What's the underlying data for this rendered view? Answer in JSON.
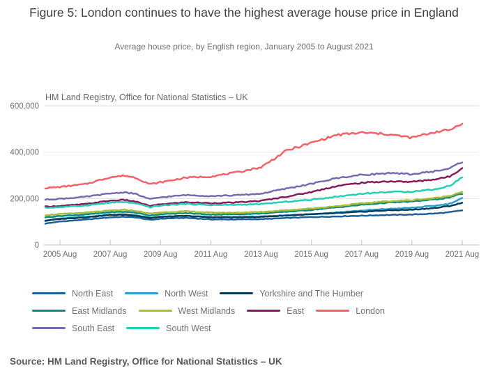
{
  "header": {
    "title": "Figure 5: London continues to have the highest average house price in England",
    "subtitle": "Average house price, by English region, January 2005 to August 2021"
  },
  "chart_note": "HM Land Registry, Office for National Statistics – UK",
  "source": "Source: HM Land Registry, Office for National Statistics – UK",
  "colors": {
    "axis_line": "#b4c3d6",
    "gridline": "#e2e2e2"
  },
  "chart_data": {
    "type": "line",
    "title": "Figure 5: London continues to have the highest average house price in England",
    "subtitle": "Average house price, by English region, January 2005 to August 2021",
    "xlabel": "",
    "ylabel": "",
    "unit": "£",
    "grid": true,
    "legend_position": "bottom",
    "x_range": [
      "2005-01",
      "2021-08"
    ],
    "ylim": [
      0,
      600000
    ],
    "y_ticks": [
      0,
      200000,
      400000,
      600000
    ],
    "y_tick_labels": [
      "0",
      "200,000",
      "400,000",
      "600,000"
    ],
    "x_tick_labels": [
      "2005 Aug",
      "2007 Aug",
      "2009 Aug",
      "2011 Aug",
      "2013 Aug",
      "2015 Aug",
      "2017 Aug",
      "2019 Aug",
      "2021 Aug"
    ],
    "anchors": [
      "2005-01",
      "2005-08",
      "2006-08",
      "2007-08",
      "2008-03",
      "2008-08",
      "2009-03",
      "2009-08",
      "2010-08",
      "2011-08",
      "2012-08",
      "2013-08",
      "2014-08",
      "2015-08",
      "2016-08",
      "2017-08",
      "2018-08",
      "2019-08",
      "2020-08",
      "2021-02",
      "2021-08"
    ],
    "series": [
      {
        "name": "North East",
        "color": "#206095",
        "values": [
          92000,
          101000,
          109000,
          119000,
          121000,
          119000,
          108000,
          113000,
          117000,
          110000,
          110000,
          111000,
          116000,
          120000,
          123000,
          126000,
          129000,
          131000,
          136000,
          141000,
          149000
        ]
      },
      {
        "name": "North West",
        "color": "#27a0cc",
        "values": [
          106000,
          114000,
          121000,
          131000,
          132000,
          128000,
          117000,
          121000,
          125000,
          120000,
          120000,
          122000,
          128000,
          133000,
          140000,
          148000,
          155000,
          160000,
          170000,
          178000,
          201000
        ]
      },
      {
        "name": "Yorkshire and The Humber",
        "color": "#003c57",
        "values": [
          104000,
          112000,
          119000,
          129000,
          130000,
          127000,
          116000,
          121000,
          125000,
          119000,
          119000,
          121000,
          127000,
          132000,
          137000,
          143000,
          149000,
          152000,
          160000,
          168000,
          181000
        ]
      },
      {
        "name": "East Midlands",
        "color": "#118c7b",
        "values": [
          119000,
          125000,
          131000,
          141000,
          143000,
          139000,
          127000,
          132000,
          137000,
          131000,
          132000,
          135000,
          143000,
          151000,
          162000,
          173000,
          182000,
          187000,
          197000,
          205000,
          221000
        ]
      },
      {
        "name": "West Midlands",
        "color": "#a8bd3a",
        "values": [
          128000,
          133000,
          139000,
          148000,
          151000,
          147000,
          135000,
          140000,
          145000,
          139000,
          139000,
          142000,
          150000,
          157000,
          167000,
          179000,
          188000,
          193000,
          203000,
          212000,
          230000
        ]
      },
      {
        "name": "East",
        "color": "#871a5b",
        "values": [
          165000,
          168000,
          176000,
          191000,
          194000,
          187000,
          168000,
          175000,
          184000,
          180000,
          183000,
          190000,
          208000,
          228000,
          254000,
          268000,
          274000,
          272000,
          284000,
          295000,
          332000
        ]
      },
      {
        "name": "London",
        "color": "#f66068",
        "values": [
          245000,
          250000,
          262000,
          292000,
          299000,
          290000,
          262000,
          270000,
          290000,
          295000,
          312000,
          335000,
          406000,
          440000,
          474000,
          484000,
          478000,
          462000,
          489000,
          495000,
          526000
        ]
      },
      {
        "name": "South East",
        "color": "#746cb1",
        "values": [
          195000,
          199000,
          207000,
          222000,
          227000,
          220000,
          197000,
          205000,
          215000,
          211000,
          214000,
          221000,
          243000,
          263000,
          288000,
          302000,
          309000,
          305000,
          319000,
          330000,
          359000
        ]
      },
      {
        "name": "South West",
        "color": "#22d0b6",
        "values": [
          160000,
          163000,
          170000,
          182000,
          185000,
          179000,
          163000,
          170000,
          177000,
          172000,
          173000,
          176000,
          186000,
          195000,
          208000,
          221000,
          228000,
          230000,
          241000,
          255000,
          292000
        ]
      }
    ]
  },
  "legend": {
    "rows": [
      [
        "North East",
        "North West",
        "Yorkshire and The Humber"
      ],
      [
        "East Midlands",
        "West Midlands",
        "East",
        "London"
      ],
      [
        "South East",
        "South West"
      ]
    ]
  }
}
